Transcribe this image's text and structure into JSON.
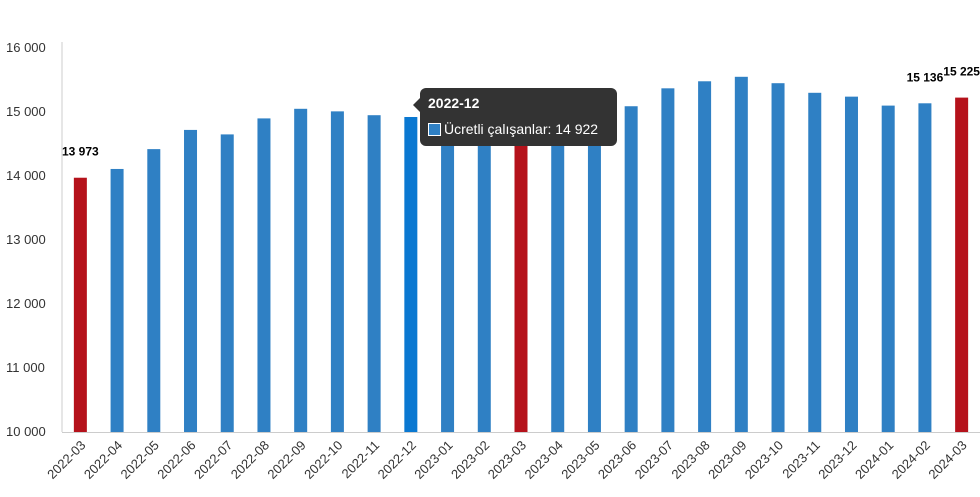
{
  "chart_data": {
    "type": "bar",
    "categories": [
      "2022-03",
      "2022-04",
      "2022-05",
      "2022-06",
      "2022-07",
      "2022-08",
      "2022-09",
      "2022-10",
      "2022-11",
      "2022-12",
      "2023-01",
      "2023-02",
      "2023-03",
      "2023-04",
      "2023-05",
      "2023-06",
      "2023-07",
      "2023-08",
      "2023-09",
      "2023-10",
      "2023-11",
      "2023-12",
      "2024-01",
      "2024-02",
      "2024-03"
    ],
    "series": [
      {
        "name": "Ücretli çalışanlar",
        "values": [
          13973,
          14110,
          14420,
          14720,
          14650,
          14900,
          15050,
          15010,
          14950,
          14922,
          14700,
          14520,
          14840,
          14640,
          15030,
          15090,
          15370,
          15480,
          15550,
          15450,
          15300,
          15240,
          15100,
          15136,
          15225
        ]
      }
    ],
    "highlighted_indices": [
      0,
      12,
      24
    ],
    "hovered_index": 9,
    "data_labels": [
      {
        "index": 0,
        "text": "13 973"
      },
      {
        "index": 12,
        "text": "14 840"
      },
      {
        "index": 23,
        "text": "15 136"
      },
      {
        "index": 24,
        "text": "15 225"
      }
    ],
    "y_ticks": [
      "10 000",
      "11 000",
      "12 000",
      "13 000",
      "14 000",
      "15 000",
      "16 000"
    ],
    "ylim": [
      10000,
      16000
    ],
    "title": "",
    "xlabel": "",
    "ylabel": "",
    "grid": false,
    "colors": {
      "bar": "#2f80c4",
      "highlight": "#b5121b",
      "hover": "#0a78d1",
      "axis": "#cccccc"
    }
  },
  "tooltip": {
    "title": "2022-12",
    "series_label": "Ücretli çalışanlar: 14 922"
  }
}
